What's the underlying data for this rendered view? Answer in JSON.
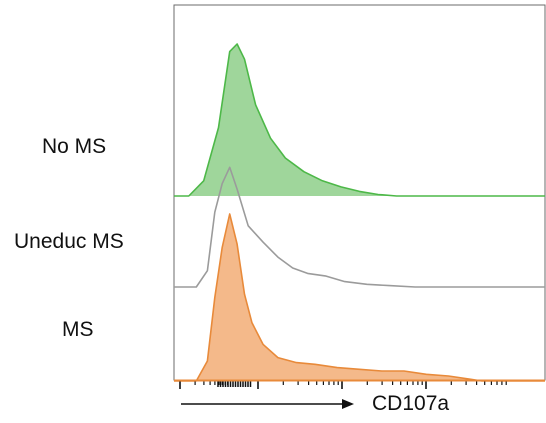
{
  "chart_data": {
    "type": "area",
    "subtype": "stacked-histogram-overlay",
    "xlabel": "CD107a",
    "x_scale": "log",
    "series": [
      {
        "name": "No MS",
        "color": "#4db848",
        "fill": "#9fd69b",
        "filled": true,
        "points": [
          [
            0,
            0
          ],
          [
            4,
            0
          ],
          [
            8,
            0.1
          ],
          [
            12,
            0.45
          ],
          [
            15,
            0.95
          ],
          [
            17,
            1.0
          ],
          [
            19,
            0.9
          ],
          [
            22,
            0.6
          ],
          [
            26,
            0.38
          ],
          [
            30,
            0.25
          ],
          [
            35,
            0.16
          ],
          [
            40,
            0.1
          ],
          [
            45,
            0.06
          ],
          [
            50,
            0.03
          ],
          [
            55,
            0.01
          ],
          [
            60,
            0
          ],
          [
            100,
            0
          ]
        ]
      },
      {
        "name": "Uneduc MS",
        "color": "#9b9b9b",
        "filled": false,
        "points": [
          [
            0,
            0
          ],
          [
            6,
            0
          ],
          [
            9,
            0.12
          ],
          [
            11,
            0.55
          ],
          [
            13,
            0.76
          ],
          [
            15,
            0.88
          ],
          [
            17,
            0.72
          ],
          [
            20,
            0.45
          ],
          [
            24,
            0.33
          ],
          [
            28,
            0.22
          ],
          [
            32,
            0.14
          ],
          [
            36,
            0.1
          ],
          [
            41,
            0.08
          ],
          [
            46,
            0.04
          ],
          [
            52,
            0.02
          ],
          [
            58,
            0.01
          ],
          [
            65,
            0
          ],
          [
            100,
            0
          ]
        ]
      },
      {
        "name": "MS",
        "color": "#e88a3a",
        "fill": "#f4b98a",
        "filled": true,
        "points": [
          [
            0,
            0
          ],
          [
            6,
            0
          ],
          [
            9,
            0.12
          ],
          [
            11,
            0.5
          ],
          [
            13,
            0.8
          ],
          [
            15,
            1.0
          ],
          [
            17,
            0.82
          ],
          [
            19,
            0.52
          ],
          [
            21,
            0.35
          ],
          [
            24,
            0.22
          ],
          [
            28,
            0.14
          ],
          [
            33,
            0.11
          ],
          [
            38,
            0.1
          ],
          [
            44,
            0.08
          ],
          [
            50,
            0.07
          ],
          [
            56,
            0.06
          ],
          [
            62,
            0.06
          ],
          [
            68,
            0.04
          ],
          [
            74,
            0.03
          ],
          [
            80,
            0.01
          ],
          [
            83,
            0
          ],
          [
            100,
            0
          ]
        ]
      }
    ],
    "grid": false,
    "legend": "none"
  },
  "labels": {
    "row1": "No MS",
    "row2": "Uneduc MS",
    "row3": "MS"
  }
}
